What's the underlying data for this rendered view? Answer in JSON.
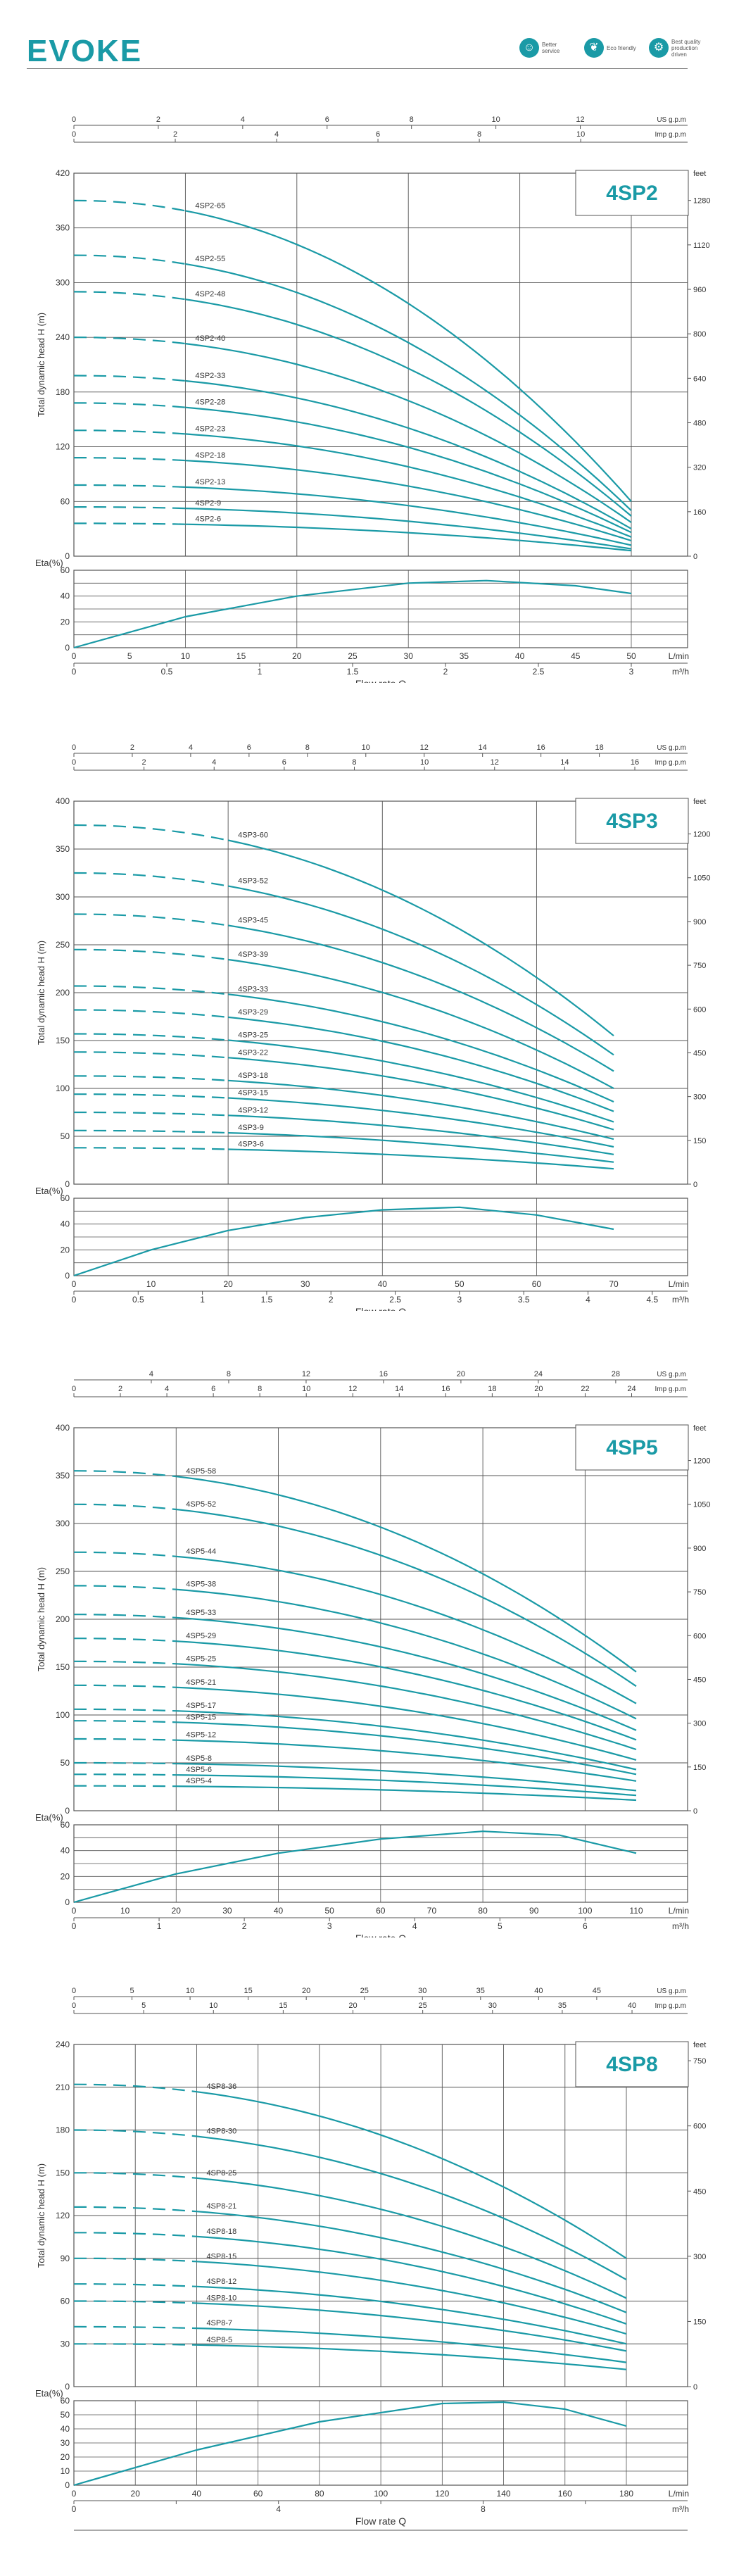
{
  "header": {
    "logo": "EVOKE",
    "badges": [
      {
        "icon": "person-icon",
        "text": "Better service"
      },
      {
        "icon": "leaf-icon",
        "text": "Eco friendly"
      },
      {
        "icon": "gear-icon",
        "text": "Best quality production driven"
      }
    ]
  },
  "colors": {
    "accent": "#1a9aa6",
    "grid": "#555555"
  },
  "chart_data": [
    {
      "type": "line",
      "title": "4SP2",
      "ylabel": "Total dynamic head H (m)",
      "xlabel": "Flow rate Q",
      "eta_label": "Eta(%)",
      "ylim": [
        0,
        420
      ],
      "yticks": [
        0,
        60,
        120,
        180,
        240,
        300,
        360,
        420
      ],
      "feet_ticks": [
        0,
        160,
        320,
        480,
        640,
        800,
        960,
        1120,
        1280
      ],
      "feet_label": "feet",
      "xlim_lmin": [
        0,
        50
      ],
      "lmin_ticks": [
        0,
        5,
        10,
        15,
        20,
        25,
        30,
        35,
        40,
        45,
        50
      ],
      "lmin_label": "L/min",
      "m3h_ticks": [
        0,
        0.5,
        1,
        1.5,
        2,
        2.5,
        3
      ],
      "m3h_labels": [
        "0",
        "0.5",
        "1",
        "1.5",
        "2",
        "2.5",
        "3"
      ],
      "m3h_label": "m³/h",
      "usgpm_ticks": [
        0,
        2,
        4,
        6,
        8,
        10,
        12
      ],
      "usgpm_label": "US g.p.m",
      "impgpm_ticks": [
        0,
        2,
        4,
        6,
        8,
        10
      ],
      "impgpm_label": "Imp g.p.m",
      "eta_ylim": [
        0,
        60
      ],
      "eta_yticks": [
        0,
        20,
        40,
        60
      ],
      "eta_curve": [
        [
          0,
          0
        ],
        [
          10,
          24
        ],
        [
          20,
          40
        ],
        [
          30,
          50
        ],
        [
          37,
          52
        ],
        [
          45,
          48
        ],
        [
          50,
          42
        ]
      ],
      "curve_end_lmin": 50,
      "dash_end_lmin": 10,
      "series": [
        {
          "name": "4SP2-65",
          "h0": 390,
          "hend": 60
        },
        {
          "name": "4SP2-55",
          "h0": 330,
          "hend": 50
        },
        {
          "name": "4SP2-48",
          "h0": 290,
          "hend": 44
        },
        {
          "name": "4SP2-40",
          "h0": 240,
          "hend": 37
        },
        {
          "name": "4SP2-33",
          "h0": 198,
          "hend": 30
        },
        {
          "name": "4SP2-28",
          "h0": 168,
          "hend": 26
        },
        {
          "name": "4SP2-23",
          "h0": 138,
          "hend": 21
        },
        {
          "name": "4SP2-18",
          "h0": 108,
          "hend": 17
        },
        {
          "name": "4SP2-13",
          "h0": 78,
          "hend": 12
        },
        {
          "name": "4SP2-9",
          "h0": 54,
          "hend": 8
        },
        {
          "name": "4SP2-6",
          "h0": 36,
          "hend": 6
        }
      ]
    },
    {
      "type": "line",
      "title": "4SP3",
      "ylabel": "Total dynamic head H (m)",
      "xlabel": "Flow rate Q",
      "eta_label": "Eta(%)",
      "ylim": [
        0,
        400
      ],
      "yticks": [
        0,
        50,
        100,
        150,
        200,
        250,
        300,
        350,
        400
      ],
      "feet_ticks": [
        0,
        150,
        300,
        450,
        600,
        750,
        900,
        1050,
        1200
      ],
      "feet_label": "feet",
      "xlim_lmin": [
        0,
        80
      ],
      "lmin_ticks": [
        0,
        10,
        20,
        30,
        40,
        50,
        60,
        70
      ],
      "lmin_label": "L/min",
      "m3h_ticks": [
        0,
        0.5,
        1,
        1.5,
        2,
        2.5,
        3,
        3.5,
        4,
        4.5
      ],
      "m3h_labels": [
        "0",
        "0.5",
        "1",
        "1.5",
        "2",
        "2.5",
        "3",
        "3.5",
        "4",
        "4.5"
      ],
      "m3h_label": "m³/h",
      "usgpm_ticks": [
        0,
        2,
        4,
        6,
        8,
        10,
        12,
        14,
        16,
        18
      ],
      "usgpm_label": "US g.p.m",
      "impgpm_ticks": [
        0,
        2,
        4,
        6,
        8,
        10,
        12,
        14,
        16
      ],
      "impgpm_label": "Imp g.p.m",
      "eta_ylim": [
        0,
        60
      ],
      "eta_yticks": [
        0,
        20,
        40,
        60
      ],
      "eta_curve": [
        [
          0,
          0
        ],
        [
          10,
          20
        ],
        [
          20,
          35
        ],
        [
          30,
          45
        ],
        [
          40,
          51
        ],
        [
          50,
          53
        ],
        [
          60,
          47
        ],
        [
          70,
          36
        ]
      ],
      "curve_end_lmin": 70,
      "dash_end_lmin": 20,
      "series": [
        {
          "name": "4SP3-60",
          "h0": 375,
          "hend": 155
        },
        {
          "name": "4SP3-52",
          "h0": 325,
          "hend": 135
        },
        {
          "name": "4SP3-45",
          "h0": 282,
          "hend": 118
        },
        {
          "name": "4SP3-39",
          "h0": 245,
          "hend": 100
        },
        {
          "name": "4SP3-33",
          "h0": 207,
          "hend": 86
        },
        {
          "name": "4SP3-29",
          "h0": 182,
          "hend": 76
        },
        {
          "name": "4SP3-25",
          "h0": 157,
          "hend": 65
        },
        {
          "name": "4SP3-22",
          "h0": 138,
          "hend": 57
        },
        {
          "name": "4SP3-18",
          "h0": 113,
          "hend": 47
        },
        {
          "name": "4SP3-15",
          "h0": 94,
          "hend": 39
        },
        {
          "name": "4SP3-12",
          "h0": 75,
          "hend": 31
        },
        {
          "name": "4SP3-9",
          "h0": 56,
          "hend": 23
        },
        {
          "name": "4SP3-6",
          "h0": 38,
          "hend": 16
        }
      ]
    },
    {
      "type": "line",
      "title": "4SP5",
      "ylabel": "Total dynamic head H (m)",
      "xlabel": "Flow rate Q",
      "eta_label": "Eta(%)",
      "ylim": [
        0,
        400
      ],
      "yticks": [
        0,
        50,
        100,
        150,
        200,
        250,
        300,
        350,
        400
      ],
      "feet_ticks": [
        0,
        150,
        300,
        450,
        600,
        750,
        900,
        1050,
        1200
      ],
      "feet_label": "feet",
      "xlim_lmin": [
        0,
        120
      ],
      "lmin_ticks": [
        0,
        10,
        20,
        30,
        40,
        50,
        60,
        70,
        80,
        90,
        100,
        110
      ],
      "lmin_label": "L/min",
      "m3h_ticks": [
        0,
        1,
        2,
        3,
        4,
        5,
        6
      ],
      "m3h_labels": [
        "0",
        "1",
        "2",
        "3",
        "4",
        "5",
        "6"
      ],
      "m3h_label": "m³/h",
      "usgpm_ticks": [
        4,
        8,
        12,
        16,
        20,
        24,
        28
      ],
      "usgpm_label": "US g.p.m",
      "impgpm_ticks": [
        0,
        2,
        4,
        6,
        8,
        10,
        12,
        14,
        16,
        18,
        20,
        22,
        24
      ],
      "impgpm_label": "Imp g.p.m",
      "eta_ylim": [
        0,
        60
      ],
      "eta_yticks": [
        0,
        20,
        40,
        60
      ],
      "eta_curve": [
        [
          0,
          0
        ],
        [
          20,
          22
        ],
        [
          40,
          38
        ],
        [
          60,
          49
        ],
        [
          80,
          55
        ],
        [
          95,
          52
        ],
        [
          110,
          38
        ]
      ],
      "curve_end_lmin": 110,
      "dash_end_lmin": 20,
      "series": [
        {
          "name": "4SP5-58",
          "h0": 355,
          "hend": 145
        },
        {
          "name": "4SP5-52",
          "h0": 320,
          "hend": 130
        },
        {
          "name": "4SP5-44",
          "h0": 270,
          "hend": 112
        },
        {
          "name": "4SP5-38",
          "h0": 235,
          "hend": 96
        },
        {
          "name": "4SP5-33",
          "h0": 205,
          "hend": 84
        },
        {
          "name": "4SP5-29",
          "h0": 180,
          "hend": 74
        },
        {
          "name": "4SP5-25",
          "h0": 156,
          "hend": 64
        },
        {
          "name": "4SP5-21",
          "h0": 131,
          "hend": 53
        },
        {
          "name": "4SP5-17",
          "h0": 106,
          "hend": 43
        },
        {
          "name": "4SP5-15",
          "h0": 94,
          "hend": 38
        },
        {
          "name": "4SP5-12",
          "h0": 75,
          "hend": 31
        },
        {
          "name": "4SP5-8",
          "h0": 50,
          "hend": 21
        },
        {
          "name": "4SP5-6",
          "h0": 38,
          "hend": 16
        },
        {
          "name": "4SP5-4",
          "h0": 26,
          "hend": 11
        }
      ]
    },
    {
      "type": "line",
      "title": "4SP8",
      "ylabel": "Total dynamic head H (m)",
      "xlabel": "Flow rate Q",
      "eta_label": "Eta(%)",
      "ylim": [
        0,
        240
      ],
      "yticks": [
        0,
        30,
        60,
        90,
        120,
        150,
        180,
        210,
        240
      ],
      "feet_ticks": [
        0,
        150,
        300,
        450,
        600,
        750
      ],
      "feet_label": "feet",
      "xlim_lmin": [
        0,
        200
      ],
      "lmin_ticks": [
        0,
        20,
        40,
        60,
        80,
        100,
        120,
        140,
        160,
        180
      ],
      "lmin_label": "L/min",
      "m3h_ticks": [
        0,
        2,
        4,
        6,
        8,
        10
      ],
      "m3h_labels": [
        "0",
        "",
        "4",
        "",
        "8",
        ""
      ],
      "m3h_label": "m³/h",
      "usgpm_ticks": [
        0,
        5,
        10,
        15,
        20,
        25,
        30,
        35,
        40,
        45
      ],
      "usgpm_label": "US g.p.m",
      "impgpm_ticks": [
        0,
        5,
        10,
        15,
        20,
        25,
        30,
        35,
        40
      ],
      "impgpm_label": "Imp g.p.m",
      "eta_ylim": [
        0,
        60
      ],
      "eta_yticks": [
        0,
        10,
        20,
        30,
        40,
        50,
        60
      ],
      "eta_curve": [
        [
          0,
          0
        ],
        [
          40,
          25
        ],
        [
          80,
          45
        ],
        [
          120,
          58
        ],
        [
          140,
          59
        ],
        [
          160,
          54
        ],
        [
          180,
          42
        ]
      ],
      "curve_end_lmin": 180,
      "dash_end_lmin": 40,
      "series": [
        {
          "name": "4SP8-36",
          "h0": 212,
          "hend": 90
        },
        {
          "name": "4SP8-30",
          "h0": 180,
          "hend": 75
        },
        {
          "name": "4SP8-25",
          "h0": 150,
          "hend": 62
        },
        {
          "name": "4SP8-21",
          "h0": 126,
          "hend": 52
        },
        {
          "name": "4SP8-18",
          "h0": 108,
          "hend": 44
        },
        {
          "name": "4SP8-15",
          "h0": 90,
          "hend": 37
        },
        {
          "name": "4SP8-12",
          "h0": 72,
          "hend": 30
        },
        {
          "name": "4SP8-10",
          "h0": 60,
          "hend": 25
        },
        {
          "name": "4SP8-7",
          "h0": 42,
          "hend": 17
        },
        {
          "name": "4SP8-5",
          "h0": 30,
          "hend": 12
        }
      ]
    }
  ]
}
